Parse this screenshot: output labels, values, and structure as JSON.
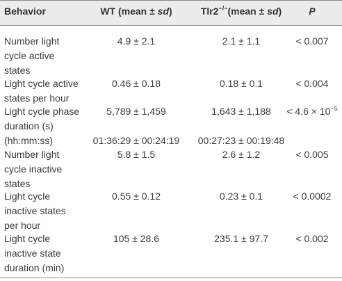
{
  "header": {
    "behavior": "Behavior",
    "wt": "WT (mean ± sd)",
    "tlr2_pre": "Tlr2",
    "tlr2_sup": "−/−",
    "tlr2_post": "(mean ± sd)",
    "p": "P"
  },
  "rows": [
    {
      "behavior": [
        "Number light",
        "cycle active",
        "states"
      ],
      "wt": "4.9 ± 2.1",
      "tlr2": "2.1 ± 1.1",
      "p": "< 0.007"
    },
    {
      "behavior": [
        "Light cycle active",
        "states per hour"
      ],
      "wt": "0.46 ± 0.18",
      "tlr2": "0.18 ± 0.1",
      "p": "< 0.004"
    },
    {
      "behavior": [
        "Light cycle phase",
        "duration (s)"
      ],
      "wt": "5,789 ± 1,459",
      "tlr2": "1,643 ± 1,188",
      "p_pre": "< 4.6 × 10",
      "p_sup": "−5"
    },
    {
      "behavior": [
        "(hh:mm:ss)"
      ],
      "wt": "01:36:29 ± 00:24:19",
      "tlr2": "00:27:23 ± 00:19:48",
      "p": ""
    },
    {
      "behavior": [
        "Number light",
        "cycle inactive",
        "states"
      ],
      "wt": "5.8 ± 1.5",
      "tlr2": "2.6 ± 1.2",
      "p": "< 0.005"
    },
    {
      "behavior": [
        "Light cycle",
        "inactive states",
        "per hour"
      ],
      "wt": "0.55 ± 0.12",
      "tlr2": "0.23 ± 0.1",
      "p": "< 0.0002"
    },
    {
      "behavior": [
        "Light cycle",
        "inactive state",
        "duration (min)"
      ],
      "wt": "105 ± 28.6",
      "tlr2": "235.1 ± 97.7",
      "p": "< 0.002"
    }
  ]
}
